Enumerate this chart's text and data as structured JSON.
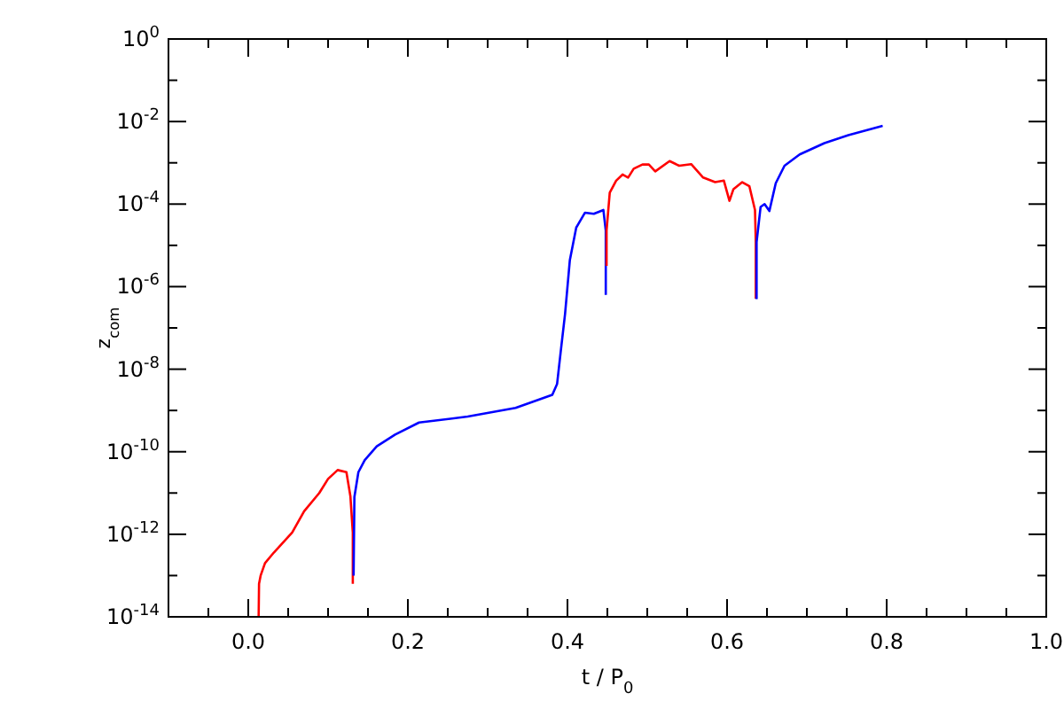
{
  "chart_data": {
    "type": "line",
    "xlabel": "t / P$_{0}$",
    "ylabel": "z$_{com}$",
    "log": "y",
    "xlim": [
      -0.1,
      1.0
    ],
    "ylim": [
      1e-14,
      1
    ],
    "xticks": [
      {
        "value": -0.05,
        "label": null
      },
      {
        "value": 0,
        "label": "0.0"
      },
      {
        "value": 0.05,
        "label": null
      },
      {
        "value": 0.1,
        "label": null
      },
      {
        "value": 0.15,
        "label": null
      },
      {
        "value": 0.2,
        "label": "0.2"
      },
      {
        "value": 0.25,
        "label": null
      },
      {
        "value": 0.3,
        "label": null
      },
      {
        "value": 0.35,
        "label": null
      },
      {
        "value": 0.4,
        "label": "0.4"
      },
      {
        "value": 0.45,
        "label": null
      },
      {
        "value": 0.5,
        "label": null
      },
      {
        "value": 0.55,
        "label": null
      },
      {
        "value": 0.6,
        "label": "0.6"
      },
      {
        "value": 0.65,
        "label": null
      },
      {
        "value": 0.7,
        "label": null
      },
      {
        "value": 0.75,
        "label": null
      },
      {
        "value": 0.8,
        "label": "0.8"
      },
      {
        "value": 0.85,
        "label": null
      },
      {
        "value": 0.9,
        "label": null
      },
      {
        "value": 0.95,
        "label": null
      },
      {
        "value": 1.0,
        "label": "1.0"
      }
    ],
    "yticks": [
      {
        "value": 1e-14,
        "label": "10$^{-14}$"
      },
      {
        "value": 1e-13,
        "label": null
      },
      {
        "value": 1e-12,
        "label": "10$^{-12}$"
      },
      {
        "value": 1e-11,
        "label": null
      },
      {
        "value": 1e-10,
        "label": "10$^{-10}$"
      },
      {
        "value": 1e-09,
        "label": null
      },
      {
        "value": 1e-08,
        "label": "10$^{-8}$"
      },
      {
        "value": 1e-07,
        "label": null
      },
      {
        "value": 1e-06,
        "label": "10$^{-6}$"
      },
      {
        "value": 1e-05,
        "label": null
      },
      {
        "value": 0.0001,
        "label": "10$^{-4}$"
      },
      {
        "value": 0.001,
        "label": null
      },
      {
        "value": 0.01,
        "label": "10$^{-2}$"
      },
      {
        "value": 0.1,
        "label": null
      },
      {
        "value": 1,
        "label": "10$^{0}$"
      }
    ],
    "marker": "none",
    "line_style": "solid",
    "series": [
      {
        "color": "#ff0000",
        "x": [
          0.013,
          0.0135,
          0.0155,
          0.021,
          0.032,
          0.055,
          0.07,
          0.089,
          0.1,
          0.112,
          0.123,
          0.128,
          0.131,
          0.131
        ],
        "values": [
          1e-14,
          6.3e-14,
          1e-13,
          2e-13,
          3.6e-13,
          1.1e-12,
          3.6e-12,
          1e-11,
          2.2e-11,
          3.6e-11,
          3.2e-11,
          8.3e-12,
          1.1e-12,
          6.3e-14
        ]
      },
      {
        "color": "#0000ff",
        "x": [
          0.132,
          0.133,
          0.138,
          0.146,
          0.161,
          0.184,
          0.214,
          0.275,
          0.335,
          0.381,
          0.387,
          0.392,
          0.397,
          0.403,
          0.411,
          0.422,
          0.433,
          0.445,
          0.448,
          0.448
        ],
        "values": [
          1e-13,
          8e-12,
          3.2e-11,
          6.3e-11,
          1.35e-10,
          2.6e-10,
          5.1e-10,
          7.1e-10,
          1.15e-09,
          2.4e-09,
          4.4e-09,
          3.2e-08,
          2.2e-07,
          4.4e-06,
          2.7e-05,
          6.2e-05,
          5.8e-05,
          7.2e-05,
          2.3e-05,
          6.3e-07
        ]
      },
      {
        "color": "#ff0000",
        "x": [
          0.449,
          0.449,
          0.453,
          0.461,
          0.469,
          0.476,
          0.483,
          0.494,
          0.502,
          0.51,
          0.528,
          0.54,
          0.555,
          0.57,
          0.585,
          0.596,
          0.603,
          0.608,
          0.619,
          0.628,
          0.635,
          0.636,
          0.636
        ],
        "values": [
          3.2e-06,
          2.3e-05,
          0.00019,
          0.00037,
          0.00052,
          0.00044,
          0.00072,
          0.00091,
          0.00091,
          0.00062,
          0.0011,
          0.00085,
          0.00093,
          0.00044,
          0.00034,
          0.00037,
          0.00012,
          0.00023,
          0.00034,
          0.00027,
          7.2e-05,
          1.2e-05,
          5.1e-07
        ]
      },
      {
        "color": "#0000ff",
        "x": [
          0.637,
          0.637,
          0.642,
          0.647,
          0.653,
          0.661,
          0.672,
          0.691,
          0.722,
          0.752,
          0.795
        ],
        "values": [
          5e-07,
          1.2e-05,
          8.5e-05,
          0.0001,
          6.8e-05,
          0.00032,
          0.00085,
          0.0016,
          0.003,
          0.0047,
          0.0079
        ]
      }
    ]
  }
}
